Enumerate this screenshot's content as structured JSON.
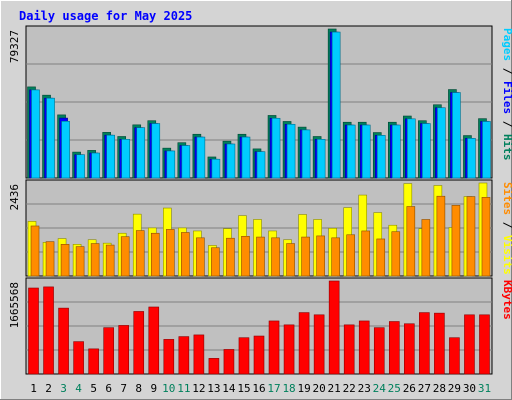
{
  "colors": {
    "frame": "#d4d4d4",
    "panel": "#c0c0c0",
    "grid": "#808080",
    "title": "#0000ff",
    "hits": "#00805c",
    "files": "#0000ff",
    "pages": "#00ccff",
    "visits": "#ffff00",
    "sites": "#ff8c00",
    "kbytes": "#ff0000",
    "weekday_label": "#000000",
    "weekend_label": "#00805c"
  },
  "chart_data": {
    "type": "bar",
    "title": "Daily usage for May 2025",
    "categories": [
      "1",
      "2",
      "3",
      "4",
      "5",
      "6",
      "7",
      "8",
      "9",
      "10",
      "11",
      "12",
      "13",
      "14",
      "15",
      "16",
      "17",
      "18",
      "19",
      "20",
      "21",
      "22",
      "23",
      "24",
      "25",
      "26",
      "27",
      "28",
      "29",
      "30",
      "31"
    ],
    "weekend_days": [
      "3",
      "4",
      "10",
      "11",
      "17",
      "18",
      "24",
      "25",
      "31"
    ],
    "panels": [
      {
        "id": "hits_files_pages",
        "max_label": "79327",
        "ymax": 79327,
        "legend": [
          {
            "text": "Hits",
            "color": "#00805c"
          },
          {
            "text": "Files",
            "color": "#0000ff"
          },
          {
            "text": "Pages",
            "color": "#00ccff"
          }
        ],
        "legend_separator": " / ",
        "series": [
          {
            "name": "Hits",
            "color": "#00805c",
            "values": [
              48500,
              44100,
              33600,
              13800,
              14700,
              24300,
              22100,
              28300,
              30500,
              15900,
              18800,
              23300,
              11200,
              19600,
              23300,
              15500,
              33300,
              30100,
              27100,
              22100,
              79327,
              29700,
              29700,
              24200,
              29700,
              33000,
              30500,
              39000,
              47100,
              22600,
              31600
            ]
          },
          {
            "name": "Files",
            "color": "#0000ff",
            "values": [
              46900,
              42500,
              31900,
              12400,
              13300,
              22800,
              20600,
              26800,
              29000,
              14400,
              17300,
              21800,
              10000,
              18100,
              21800,
              14000,
              31800,
              28600,
              25600,
              20600,
              77700,
              28200,
              28200,
              22700,
              28200,
              31500,
              29000,
              37400,
              45500,
              21100,
              30100
            ]
          },
          {
            "name": "Pages",
            "color": "#00ccff",
            "values": [
              46900,
              42500,
              30200,
              12400,
              13300,
              22800,
              20600,
              26800,
              29000,
              14400,
              17300,
              21800,
              10000,
              18100,
              21800,
              14000,
              31800,
              28600,
              25600,
              20600,
              77700,
              28200,
              28200,
              22700,
              28200,
              31500,
              29000,
              37400,
              45500,
              21100,
              30100
            ]
          }
        ]
      },
      {
        "id": "visits_sites",
        "max_label": "2436",
        "ymax": 2436,
        "legend": [
          {
            "text": "Visits",
            "color": "#ffff00"
          },
          {
            "text": "Sites",
            "color": "#ff8c00"
          }
        ],
        "legend_separator": " / ",
        "series": [
          {
            "name": "Visits",
            "color": "#ffff00",
            "values": [
              1430,
              880,
              980,
              830,
              950,
              860,
              1120,
              1620,
              1260,
              1780,
              1260,
              1180,
              800,
              1240,
              1580,
              1480,
              1180,
              950,
              1610,
              1480,
              1250,
              1790,
              2120,
              1660,
              1330,
              2420,
              1240,
              2370,
              1270,
              2080,
              2436
            ]
          },
          {
            "name": "Sites",
            "color": "#ff8c00",
            "values": [
              1310,
              900,
              830,
              770,
              850,
              810,
              1030,
              1190,
              1120,
              1220,
              1140,
              1000,
              740,
              990,
              1040,
              1020,
              1000,
              850,
              1020,
              1050,
              1000,
              1080,
              1180,
              970,
              1160,
              1820,
              1480,
              2090,
              1850,
              2080,
              2060
            ]
          }
        ]
      },
      {
        "id": "kbytes",
        "max_label": "1665568",
        "ymax": 1665568,
        "legend": [
          {
            "text": "KBytes",
            "color": "#ff0000"
          }
        ],
        "legend_separator": " / ",
        "series": [
          {
            "name": "KBytes",
            "color": "#ff0000",
            "values": [
              1540000,
              1560000,
              1180000,
              580000,
              450000,
              830000,
              870000,
              1120000,
              1200000,
              620000,
              670000,
              700000,
              280000,
              440000,
              650000,
              680000,
              950000,
              880000,
              1100000,
              1060000,
              1665568,
              880000,
              950000,
              830000,
              940000,
              900000,
              1100000,
              1090000,
              650000,
              1060000,
              1060000
            ]
          }
        ]
      }
    ]
  }
}
